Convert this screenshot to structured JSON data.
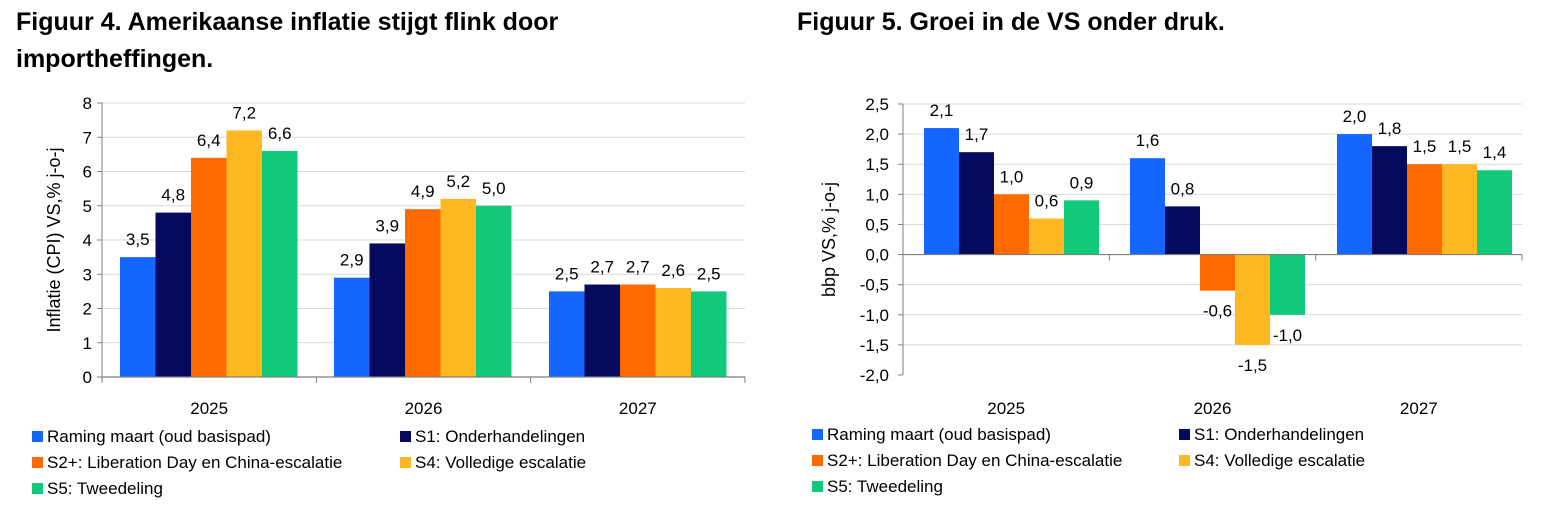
{
  "chart_data": [
    {
      "type": "bar",
      "title": "Figuur 4. Amerikaanse inflatie stijgt flink door importheffingen.",
      "xlabel": "",
      "ylabel": "Inflatie (CPI) VS,% j-o-j",
      "ylim": [
        0,
        8
      ],
      "yticks": [
        0,
        1,
        2,
        3,
        4,
        5,
        6,
        7,
        8
      ],
      "ytick_labels": [
        "0",
        "1",
        "2",
        "3",
        "4",
        "5",
        "6",
        "7",
        "8"
      ],
      "categories": [
        "2025",
        "2026",
        "2027"
      ],
      "series": [
        {
          "name": "Raming maart (oud basispad)",
          "color": "#1466ff",
          "values": [
            3.5,
            2.9,
            2.5
          ],
          "labels": [
            "3,5",
            "2,9",
            "2,5"
          ]
        },
        {
          "name": "S1: Onderhandelingen",
          "color": "#050a5f",
          "values": [
            4.8,
            3.9,
            2.7
          ],
          "labels": [
            "4,8",
            "3,9",
            "2,7"
          ]
        },
        {
          "name": "S2+: Liberation Day en China-escalatie",
          "color": "#ff6a00",
          "values": [
            6.4,
            4.9,
            2.7
          ],
          "labels": [
            "6,4",
            "4,9",
            "2,7"
          ]
        },
        {
          "name": "S4: Volledige escalatie",
          "color": "#ffb822",
          "values": [
            7.2,
            5.2,
            2.6
          ],
          "labels": [
            "7,2",
            "5,2",
            "2,6"
          ]
        },
        {
          "name": "S5: Tweedeling",
          "color": "#10c97a",
          "values": [
            6.6,
            5.0,
            2.5
          ],
          "labels": [
            "6,6",
            "5,0",
            "2,5"
          ]
        }
      ],
      "legend": "bottom"
    },
    {
      "type": "bar",
      "title": "Figuur 5. Groei in de VS onder druk.",
      "xlabel": "",
      "ylabel": "bbp VS,% j-o-j",
      "ylim": [
        -2.0,
        2.5
      ],
      "yticks": [
        -2.0,
        -1.5,
        -1.0,
        -0.5,
        0.0,
        0.5,
        1.0,
        1.5,
        2.0,
        2.5
      ],
      "ytick_labels": [
        "-2,0",
        "-1,5",
        "-1,0",
        "-0,5",
        "0,0",
        "0,5",
        "1,0",
        "1,5",
        "2,0",
        "2,5"
      ],
      "categories": [
        "2025",
        "2026",
        "2027"
      ],
      "series": [
        {
          "name": "Raming maart (oud basispad)",
          "color": "#1466ff",
          "values": [
            2.1,
            1.6,
            2.0
          ],
          "labels": [
            "2,1",
            "1,6",
            "2,0"
          ]
        },
        {
          "name": "S1: Onderhandelingen",
          "color": "#050a5f",
          "values": [
            1.7,
            0.8,
            1.8
          ],
          "labels": [
            "1,7",
            "0,8",
            "1,8"
          ]
        },
        {
          "name": "S2+: Liberation Day en China-escalatie",
          "color": "#ff6a00",
          "values": [
            1.0,
            -0.6,
            1.5
          ],
          "labels": [
            "1,0",
            "-0,6",
            "1,5"
          ]
        },
        {
          "name": "S4: Volledige escalatie",
          "color": "#ffb822",
          "values": [
            0.6,
            -1.5,
            1.5
          ],
          "labels": [
            "0,6",
            "-1,5",
            "1,5"
          ]
        },
        {
          "name": "S5: Tweedeling",
          "color": "#10c97a",
          "values": [
            0.9,
            -1.0,
            1.4
          ],
          "labels": [
            "0,9",
            "-1,0",
            "1,4"
          ]
        }
      ],
      "legend": "bottom"
    }
  ]
}
